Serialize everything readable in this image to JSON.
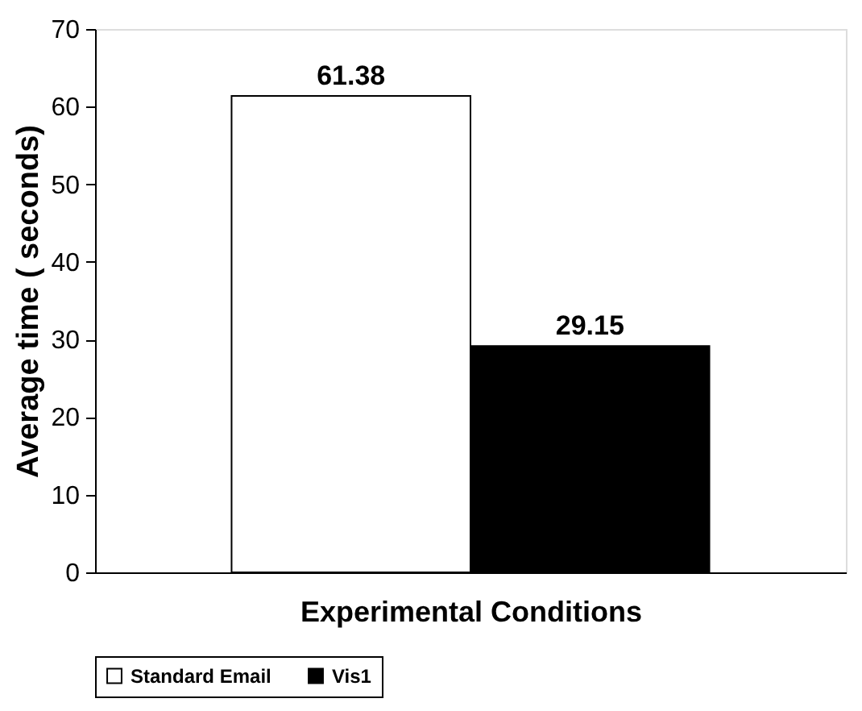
{
  "chart_data": {
    "type": "bar",
    "categories": [
      null
    ],
    "series": [
      {
        "name": "Standard Email",
        "color": "#ffffff",
        "values": [
          61.38
        ]
      },
      {
        "name": "Vis1",
        "color": "#000000",
        "values": [
          29.15
        ]
      }
    ],
    "xlabel": "Experimental Conditions",
    "ylabel": "Average time ( seconds)",
    "ylim": [
      0,
      70
    ],
    "yticks": [
      0,
      10,
      20,
      30,
      40,
      50,
      60,
      70
    ],
    "grid": false,
    "legend": "bottom",
    "data_labels": true
  }
}
